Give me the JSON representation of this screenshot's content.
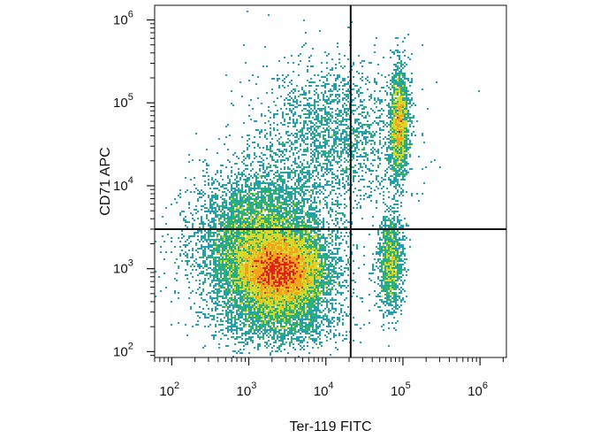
{
  "chart_data": {
    "type": "scatter",
    "title": "",
    "xlabel": "Ter-119 FITC",
    "ylabel": "CD71 APC",
    "x_scale": "log",
    "y_scale": "log",
    "xlim": [
      60,
      2200000
    ],
    "ylim": [
      85,
      1500000
    ],
    "x_ticks": [
      {
        "base": "10",
        "exp": "2",
        "value": 100
      },
      {
        "base": "10",
        "exp": "3",
        "value": 1000
      },
      {
        "base": "10",
        "exp": "4",
        "value": 10000
      },
      {
        "base": "10",
        "exp": "5",
        "value": 100000
      },
      {
        "base": "10",
        "exp": "6",
        "value": 1000000
      }
    ],
    "y_ticks": [
      {
        "base": "10",
        "exp": "2",
        "value": 100
      },
      {
        "base": "10",
        "exp": "3",
        "value": 1000
      },
      {
        "base": "10",
        "exp": "4",
        "value": 10000
      },
      {
        "base": "10",
        "exp": "5",
        "value": 100000
      },
      {
        "base": "10",
        "exp": "6",
        "value": 1000000
      }
    ],
    "quadrant_gate": {
      "x": 21000,
      "y": 3000
    },
    "grid": false,
    "legend": "none",
    "colormap": [
      "#2b4a9e",
      "#1f9fb5",
      "#32b36a",
      "#d7d92a",
      "#f3a31c",
      "#e2231a"
    ],
    "populations": [
      {
        "center": [
          2600,
          900
        ],
        "spread": [
          0.28,
          0.22
        ],
        "share": 0.42
      },
      {
        "center": [
          1500,
          2000
        ],
        "spread": [
          0.42,
          0.42
        ],
        "share": 0.31
      },
      {
        "center": [
          90000,
          55000
        ],
        "spread": [
          0.06,
          0.32
        ],
        "share": 0.08
      },
      {
        "center": [
          70000,
          1200
        ],
        "spread": [
          0.08,
          0.3
        ],
        "share": 0.05
      },
      {
        "center": [
          12000,
          40000
        ],
        "spread": [
          0.48,
          0.45
        ],
        "share": 0.08
      },
      {
        "center": [
          2500,
          250
        ],
        "spread": [
          0.4,
          0.18
        ],
        "share": 0.06
      }
    ]
  }
}
